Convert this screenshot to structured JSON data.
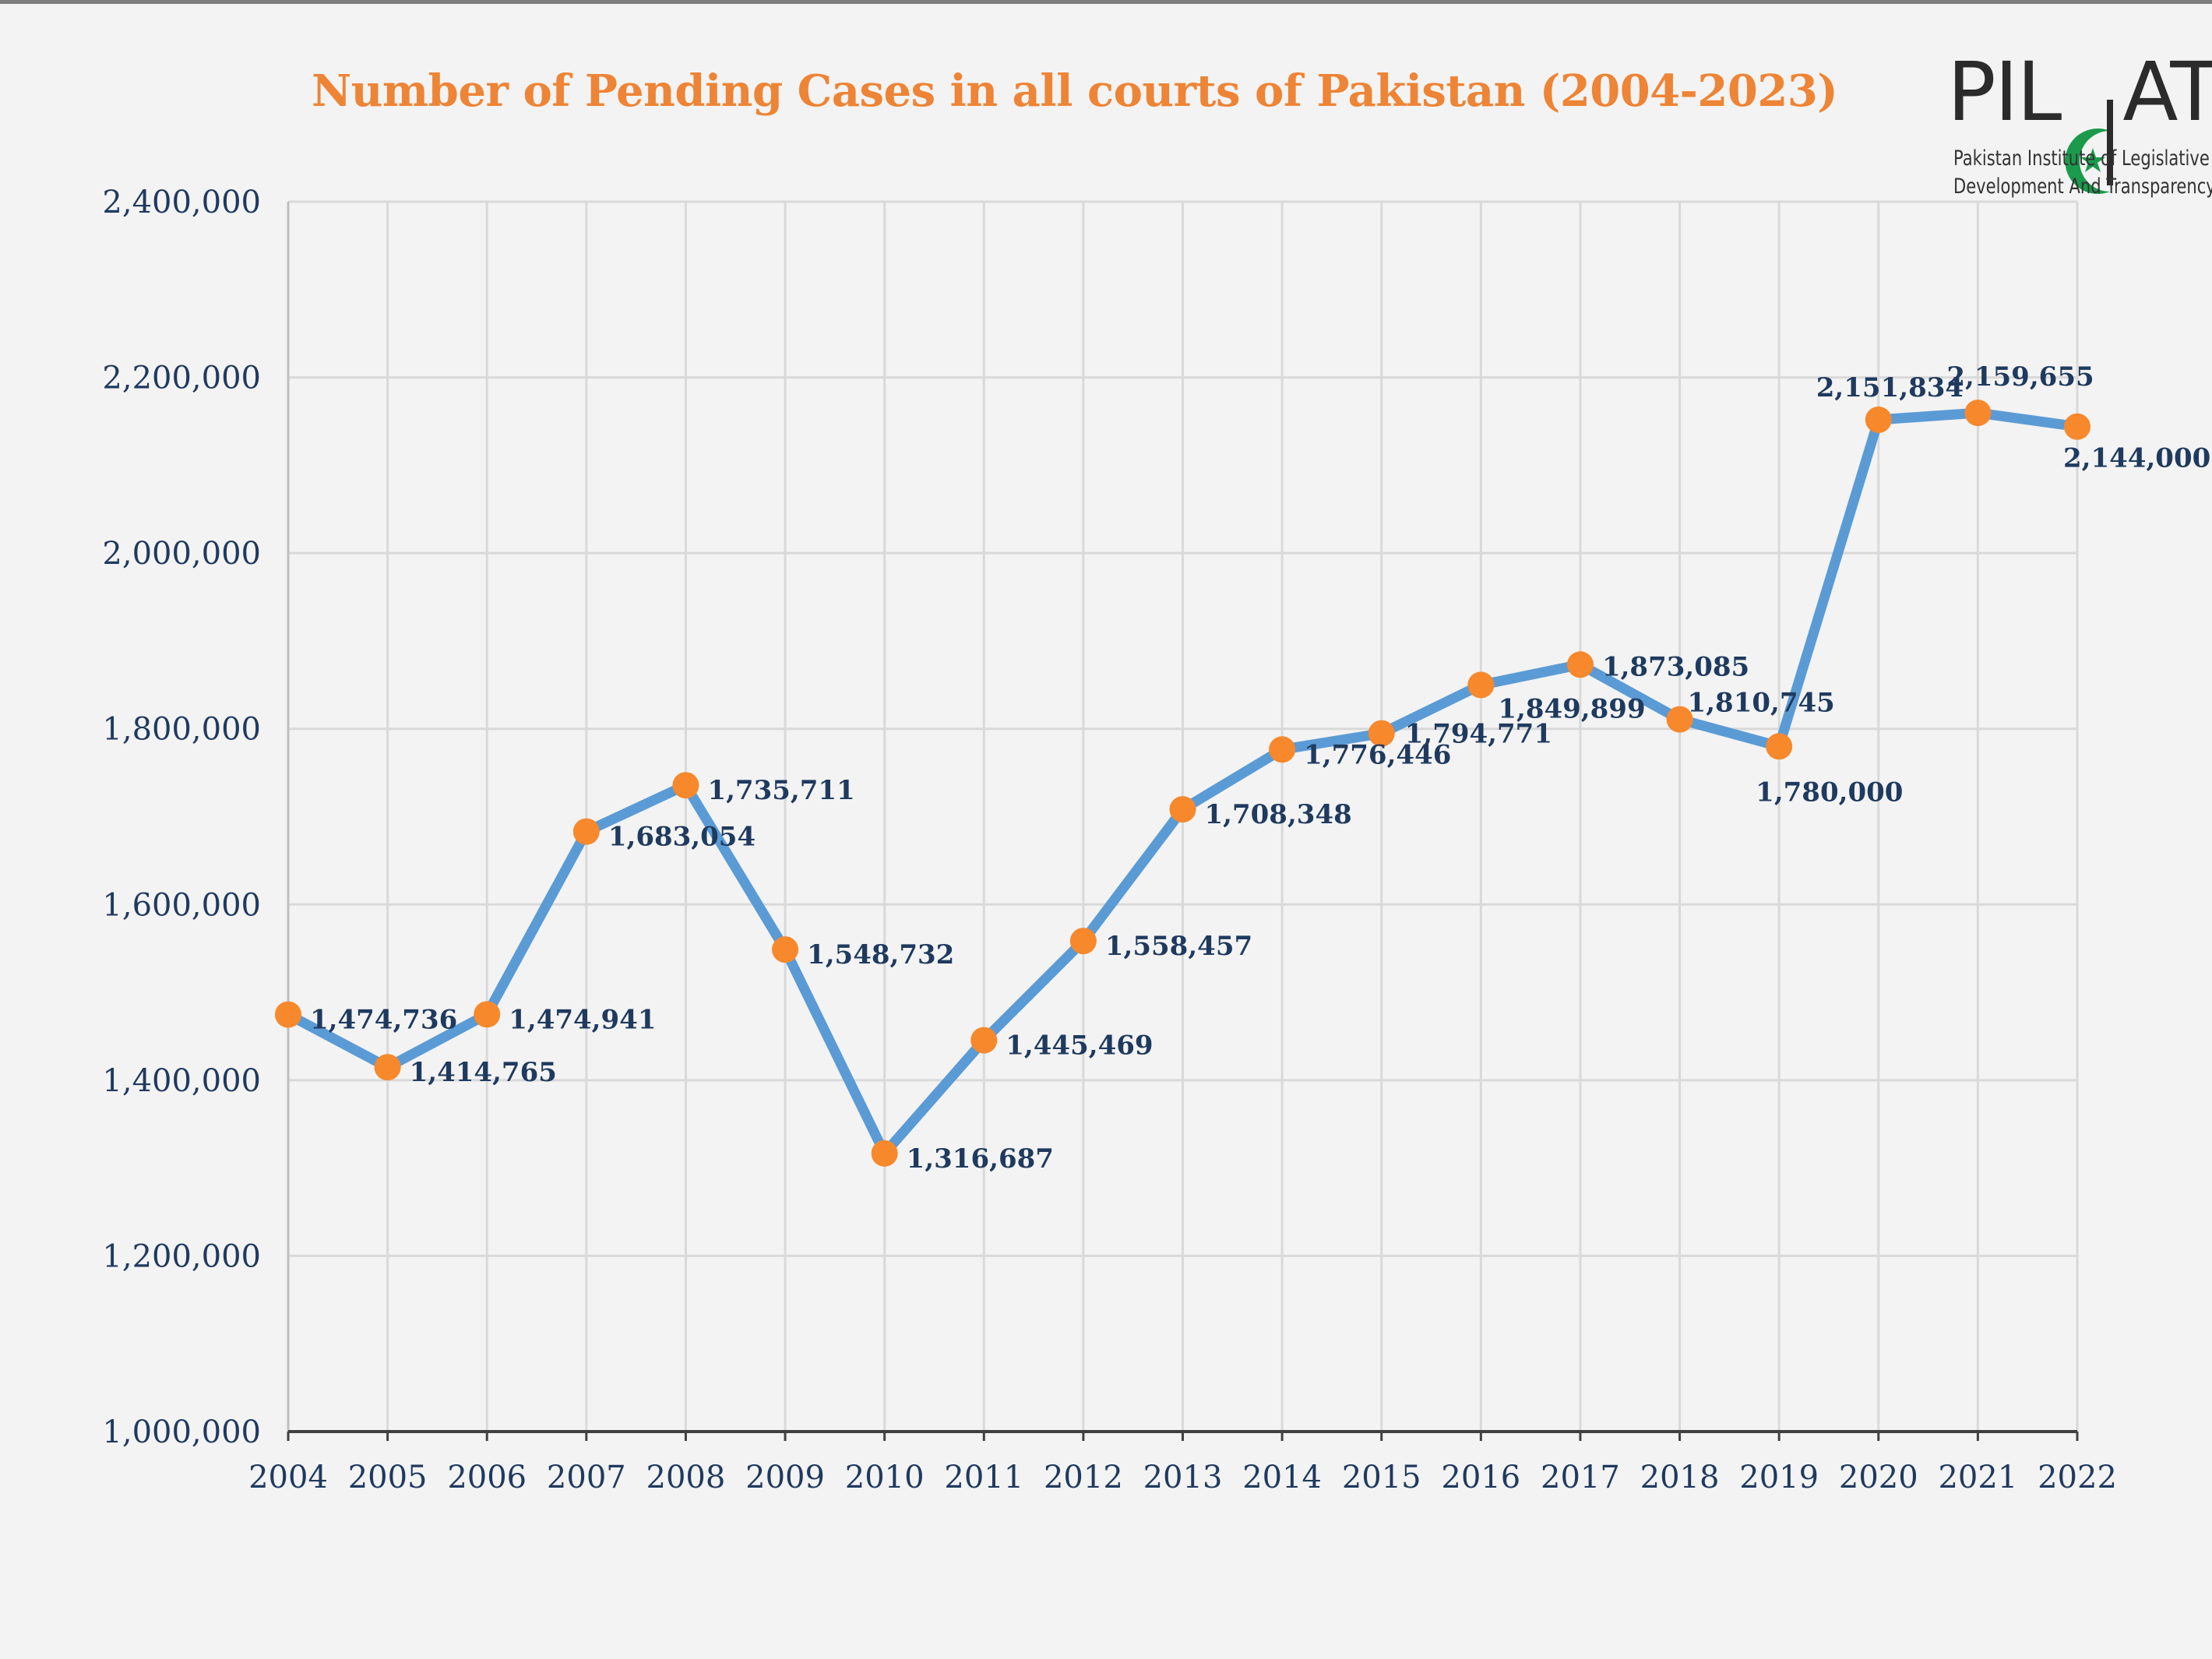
{
  "chart_data": {
    "type": "line",
    "title": "Number of Pending Cases in all courts of Pakistan (2004-2023)",
    "xlabel": "",
    "ylabel": "",
    "categories": [
      "2004",
      "2005",
      "2006",
      "2007",
      "2008",
      "2009",
      "2010",
      "2011",
      "2012",
      "2013",
      "2014",
      "2015",
      "2016",
      "2017",
      "2018",
      "2019",
      "2020",
      "2021",
      "2022"
    ],
    "series": [
      {
        "values": [
          1474736,
          1414765,
          1474941,
          1683054,
          1735711,
          1548732,
          1316687,
          1445469,
          1558457,
          1708348,
          1776446,
          1794771,
          1849899,
          1873085,
          1810745,
          1780000,
          2151834,
          2159655,
          2144000
        ],
        "labels": [
          "1,474,736",
          "1,414,765",
          "1,474,941",
          "1,683,054",
          "1,735,711",
          "1,548,732",
          "1,316,687",
          "1,445,469",
          "1,558,457",
          "1,708,348",
          "1,776,446",
          "1,794,771",
          "1,849,899",
          "1,873,085",
          "1,810,745",
          "1,780,000",
          "2,151,834",
          "2,159,655",
          "2,144,000"
        ],
        "line_color": "#5b9bd5",
        "marker_color": "#f7882b"
      }
    ],
    "ylim": [
      1000000,
      2400000
    ],
    "yticks": [
      1000000,
      1200000,
      1400000,
      1600000,
      1800000,
      2000000,
      2200000,
      2400000
    ],
    "ytick_labels": [
      "1,000,000",
      "1,200,000",
      "1,400,000",
      "1,600,000",
      "1,800,000",
      "2,000,000",
      "2,200,000",
      "2,400,000"
    ],
    "grid": true,
    "legend": "none"
  },
  "logo": {
    "wordmark": "PILDAT",
    "line1": "Pakistan Institute of Legislative",
    "line2": "Development And Transparency",
    "green": "#1a9a4a"
  },
  "colors": {
    "title": "#ee8435",
    "axis_text": "#1f3a5f",
    "background": "#f3f3f3"
  }
}
